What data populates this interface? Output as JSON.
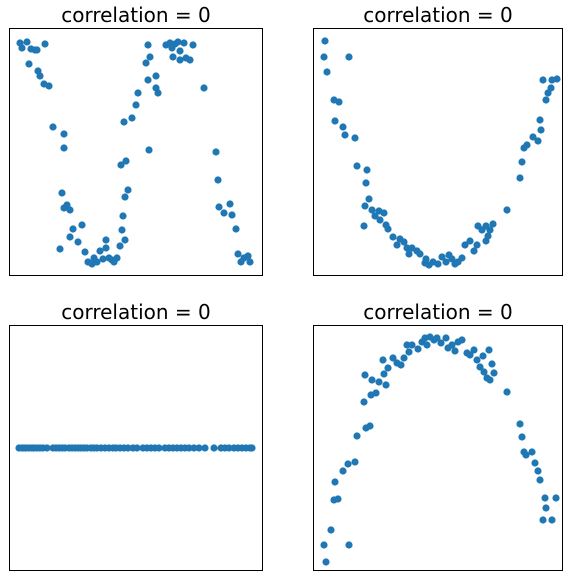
{
  "chart_data": [
    {
      "type": "scatter",
      "title": "correlation = 0",
      "color": "#1f77b4",
      "xlim": [
        0,
        254
      ],
      "ylim": [
        0,
        248
      ],
      "x": [
        11,
        13,
        18,
        22,
        26,
        28,
        36,
        20,
        29,
        31,
        35,
        40,
        44,
        55,
        55,
        53,
        55,
        58,
        61,
        51,
        61,
        64,
        69,
        73,
        76,
        79,
        83,
        85,
        88,
        91,
        94,
        97,
        97,
        100,
        103,
        105,
        108,
        111,
        116,
        113,
        114,
        116,
        119,
        112,
        117,
        115,
        123,
        127,
        129,
        140,
        139,
        137,
        141,
        139,
        147,
        149,
        147,
        157,
        161,
        163,
        164,
        166,
        169,
        171,
        171,
        177,
        175,
        181,
        184,
        195,
        207,
        209,
        210,
        215,
        221,
        223,
        227,
        229,
        232,
        235,
        239,
        241
      ],
      "values": [
        233,
        228,
        234,
        227,
        226,
        226,
        232,
        212,
        205,
        200,
        192,
        190,
        149,
        142,
        128,
        83,
        68,
        71,
        66,
        27,
        39,
        47,
        34,
        51,
        24,
        14,
        12,
        18,
        14,
        25,
        17,
        36,
        28,
        18,
        16,
        14,
        18,
        30,
        36,
        46,
        60,
        79,
        86,
        111,
        115,
        154,
        158,
        171,
        183,
        126,
        196,
        213,
        219,
        231,
        188,
        183,
        200,
        231,
        233,
        228,
        219,
        232,
        234,
        225,
        216,
        218,
        233,
        216,
        231,
        188,
        124,
        96,
        69,
        63,
        72,
        61,
        47,
        22,
        14,
        18,
        20,
        14
      ]
    },
    {
      "type": "scatter",
      "title": "correlation = 0",
      "color": "#1f77b4",
      "xlim": [
        0,
        250
      ],
      "ylim": [
        0,
        248
      ],
      "x": [
        12,
        11,
        36,
        14,
        21,
        26,
        22,
        30,
        32,
        42,
        44,
        54,
        53,
        56,
        52,
        59,
        62,
        66,
        67,
        71,
        51,
        73,
        75,
        80,
        87,
        84,
        91,
        94,
        96,
        99,
        104,
        107,
        112,
        113,
        116,
        120,
        125,
        129,
        133,
        136,
        139,
        142,
        145,
        149,
        152,
        157,
        161,
        164,
        165,
        169,
        173,
        173,
        175,
        177,
        180,
        194,
        207,
        209,
        211,
        214,
        220,
        225,
        227,
        228,
        233,
        235,
        238,
        230,
        239,
        244
      ],
      "values": [
        235,
        219,
        219,
        204,
        176,
        174,
        155,
        149,
        141,
        138,
        110,
        106,
        93,
        77,
        70,
        66,
        60,
        65,
        56,
        63,
        50,
        51,
        47,
        39,
        37,
        31,
        34,
        28,
        22,
        28,
        25,
        22,
        13,
        17,
        11,
        14,
        12,
        19,
        14,
        21,
        17,
        12,
        14,
        18,
        31,
        35,
        25,
        31,
        50,
        46,
        50,
        35,
        40,
        46,
        52,
        66,
        98,
        114,
        128,
        131,
        139,
        135,
        156,
        146,
        176,
        183,
        188,
        196,
        196,
        197
      ]
    },
    {
      "type": "scatter",
      "title": "correlation = 0",
      "color": "#1f77b4",
      "xlim": [
        0,
        254
      ],
      "ylim": [
        -1,
        1
      ],
      "x": [
        10,
        13,
        15,
        17,
        20,
        23,
        25,
        28,
        31,
        34,
        38,
        44,
        47,
        50,
        53,
        56,
        60,
        63,
        66,
        69,
        72,
        75,
        78,
        82,
        85,
        88,
        92,
        96,
        100,
        104,
        107,
        111,
        115,
        119,
        124,
        128,
        134,
        138,
        142,
        146,
        150,
        156,
        160,
        164,
        168,
        172,
        176,
        180,
        185,
        190,
        196,
        205,
        212,
        216,
        220,
        225,
        229,
        233,
        237,
        241,
        243
      ],
      "values": [
        0,
        0,
        0,
        0,
        0,
        0,
        0,
        0,
        0,
        0,
        0,
        0,
        0,
        0,
        0,
        0,
        0,
        0,
        0,
        0,
        0,
        0,
        0,
        0,
        0,
        0,
        0,
        0,
        0,
        0,
        0,
        0,
        0,
        0,
        0,
        0,
        0,
        0,
        0,
        0,
        0,
        0,
        0,
        0,
        0,
        0,
        0,
        0,
        0,
        0,
        0,
        0,
        0,
        0,
        0,
        0,
        0,
        0,
        0,
        0,
        0
      ]
    },
    {
      "type": "scatter",
      "title": "correlation = 0",
      "color": "#1f77b4",
      "xlim": [
        0,
        250
      ],
      "ylim": [
        0,
        246
      ],
      "x": [
        13,
        11,
        18,
        36,
        21,
        25,
        22,
        30,
        35,
        42,
        44,
        53,
        57,
        51,
        58,
        63,
        52,
        59,
        66,
        73,
        71,
        75,
        70,
        80,
        84,
        88,
        91,
        94,
        96,
        99,
        105,
        109,
        112,
        114,
        117,
        121,
        124,
        128,
        133,
        135,
        139,
        142,
        145,
        149,
        154,
        157,
        161,
        164,
        167,
        171,
        174,
        170,
        176,
        179,
        181,
        177,
        194,
        207,
        209,
        211,
        213,
        219,
        222,
        225,
        227,
        232,
        233,
        230,
        239,
        243
      ],
      "values": [
        9,
        26,
        41,
        26,
        71,
        72,
        89,
        100,
        107,
        109,
        135,
        143,
        145,
        169,
        176,
        178,
        196,
        191,
        189,
        186,
        197,
        203,
        211,
        213,
        208,
        206,
        213,
        226,
        219,
        226,
        222,
        229,
        233,
        226,
        234,
        231,
        233,
        228,
        233,
        223,
        226,
        220,
        229,
        231,
        218,
        216,
        221,
        211,
        204,
        199,
        193,
        215,
        221,
        207,
        198,
        191,
        179,
        147,
        134,
        119,
        116,
        119,
        108,
        100,
        91,
        73,
        63,
        51,
        51,
        73
      ]
    }
  ]
}
